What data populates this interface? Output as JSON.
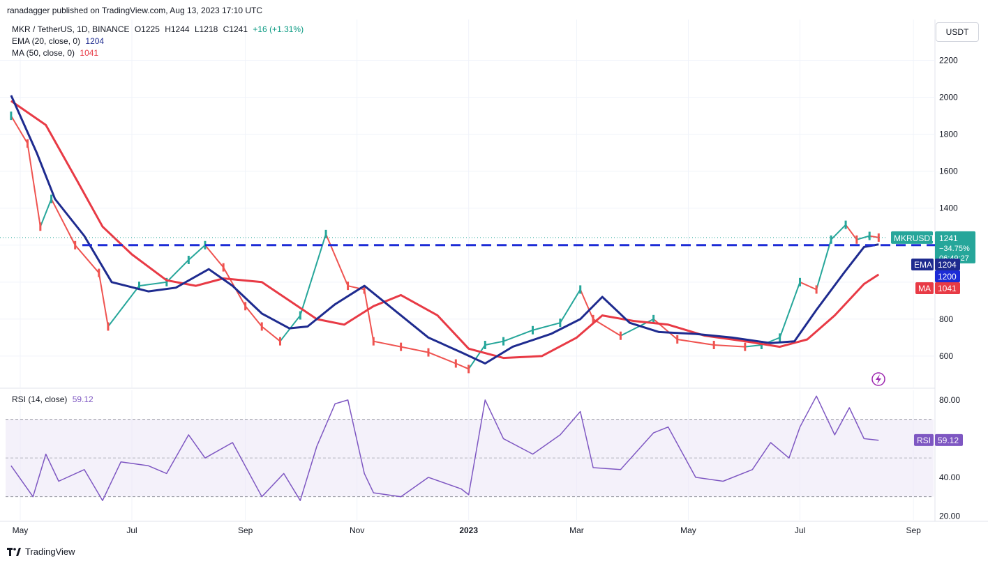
{
  "publisher": "ranadagger published on TradingView.com, Aug 13, 2023 17:10 UTC",
  "header": {
    "symbol": "MKR / TetherUS, 1D, BINANCE",
    "open": "O1225",
    "high": "H1244",
    "low": "L1218",
    "close": "C1241",
    "change": "+16 (+1.31%)",
    "ema_label": "EMA (20, close, 0)",
    "ema_value": "1204",
    "ma_label": "MA (50, close, 0)",
    "ma_value": "1041",
    "rsi_label": "RSI (14, close)",
    "rsi_value": "59.12"
  },
  "currency_button": "USDT",
  "branding": "TradingView",
  "colors": {
    "up": "#26a69a",
    "down": "#ef5350",
    "ema": "#1e2b8f",
    "ma": "#e83a45",
    "dashed_line": "#1c2bd6",
    "rsi": "#7e57c2",
    "rsi_band": "#ede7f6",
    "price_tag": "#26a69a",
    "bolt": "#9c27b0"
  },
  "badges": {
    "symbol": "MKRUSDT",
    "price": "1241",
    "pct": "−34.75%",
    "countdown": "06:49:27",
    "ema": "EMA",
    "ema_val": "1204",
    "level": "1200",
    "ma": "MA",
    "ma_val": "1041",
    "rsi": "RSI",
    "rsi_val": "59.12"
  },
  "chart_data": [
    {
      "type": "line",
      "title": "MKR / TetherUS, 1D, BINANCE",
      "x_ticks": [
        "May",
        "Jul",
        "Sep",
        "Nov",
        "2023",
        "Mar",
        "May",
        "Jul",
        "Sep"
      ],
      "y_ticks": [
        600,
        800,
        1000,
        1200,
        1400,
        1600,
        1800,
        2000,
        2200
      ],
      "ylim": [
        430,
        2300
      ],
      "horizontal_level": 1200,
      "price_points": {
        "x": [
          "2022-04-26",
          "2022-05-05",
          "2022-05-12",
          "2022-05-18",
          "2022-05-31",
          "2022-06-13",
          "2022-06-18",
          "2022-07-05",
          "2022-07-20",
          "2022-08-01",
          "2022-08-10",
          "2022-08-20",
          "2022-09-01",
          "2022-09-10",
          "2022-09-20",
          "2022-10-01",
          "2022-10-15",
          "2022-10-27",
          "2022-11-05",
          "2022-11-10",
          "2022-11-25",
          "2022-12-10",
          "2022-12-25",
          "2023-01-01",
          "2023-01-10",
          "2023-01-20",
          "2023-02-05",
          "2023-02-20",
          "2023-03-03",
          "2023-03-10",
          "2023-03-25",
          "2023-04-12",
          "2023-04-25",
          "2023-05-15",
          "2023-06-01",
          "2023-06-10",
          "2023-06-20",
          "2023-07-01",
          "2023-07-10",
          "2023-07-18",
          "2023-07-26",
          "2023-08-01",
          "2023-08-08",
          "2023-08-13"
        ],
        "y": [
          1900,
          1750,
          1300,
          1450,
          1200,
          1050,
          760,
          980,
          1000,
          1120,
          1200,
          1080,
          870,
          760,
          680,
          820,
          1260,
          980,
          960,
          680,
          650,
          620,
          560,
          530,
          660,
          680,
          740,
          780,
          960,
          800,
          710,
          800,
          690,
          660,
          650,
          660,
          700,
          1000,
          960,
          1230,
          1310,
          1230,
          1250,
          1241
        ]
      },
      "ema20": {
        "x": [
          "2022-04-26",
          "2022-05-10",
          "2022-05-20",
          "2022-06-05",
          "2022-06-20",
          "2022-07-10",
          "2022-07-25",
          "2022-08-12",
          "2022-08-25",
          "2022-09-10",
          "2022-09-25",
          "2022-10-05",
          "2022-10-20",
          "2022-11-05",
          "2022-11-20",
          "2022-12-10",
          "2022-12-28",
          "2023-01-10",
          "2023-01-25",
          "2023-02-15",
          "2023-03-03",
          "2023-03-15",
          "2023-03-30",
          "2023-04-15",
          "2023-05-05",
          "2023-05-25",
          "2023-06-15",
          "2023-06-28",
          "2023-07-10",
          "2023-07-25",
          "2023-08-05",
          "2023-08-13"
        ],
        "y": [
          2010,
          1700,
          1450,
          1250,
          1000,
          950,
          970,
          1070,
          980,
          830,
          750,
          760,
          880,
          980,
          860,
          700,
          620,
          560,
          650,
          720,
          800,
          920,
          780,
          730,
          720,
          700,
          670,
          680,
          850,
          1050,
          1190,
          1204
        ]
      },
      "ma50": {
        "x": [
          "2022-04-26",
          "2022-05-15",
          "2022-06-01",
          "2022-06-15",
          "2022-07-01",
          "2022-07-20",
          "2022-08-05",
          "2022-08-20",
          "2022-09-10",
          "2022-09-25",
          "2022-10-10",
          "2022-10-25",
          "2022-11-10",
          "2022-11-25",
          "2022-12-15",
          "2023-01-01",
          "2023-01-20",
          "2023-02-10",
          "2023-03-01",
          "2023-03-15",
          "2023-04-01",
          "2023-04-20",
          "2023-05-10",
          "2023-06-01",
          "2023-06-20",
          "2023-07-05",
          "2023-07-20",
          "2023-08-05",
          "2023-08-13"
        ],
        "y": [
          1980,
          1850,
          1550,
          1300,
          1150,
          1010,
          980,
          1020,
          1000,
          900,
          800,
          770,
          870,
          930,
          820,
          640,
          590,
          600,
          700,
          820,
          790,
          770,
          710,
          680,
          650,
          690,
          820,
          990,
          1041
        ]
      }
    },
    {
      "type": "line",
      "title": "RSI (14, close)",
      "y_ticks": [
        20.0,
        40.0,
        80.0
      ],
      "ylim": [
        18,
        85
      ],
      "band": [
        30,
        70
      ],
      "midline": 50,
      "rsi": {
        "x": [
          "2022-04-26",
          "2022-05-08",
          "2022-05-15",
          "2022-05-22",
          "2022-06-05",
          "2022-06-15",
          "2022-06-25",
          "2022-07-10",
          "2022-07-20",
          "2022-08-01",
          "2022-08-10",
          "2022-08-25",
          "2022-09-10",
          "2022-09-22",
          "2022-10-01",
          "2022-10-10",
          "2022-10-20",
          "2022-10-27",
          "2022-11-05",
          "2022-11-10",
          "2022-11-25",
          "2022-12-10",
          "2022-12-28",
          "2023-01-01",
          "2023-01-10",
          "2023-01-20",
          "2023-02-05",
          "2023-02-20",
          "2023-03-03",
          "2023-03-10",
          "2023-03-25",
          "2023-04-12",
          "2023-04-20",
          "2023-05-05",
          "2023-05-20",
          "2023-06-05",
          "2023-06-15",
          "2023-06-25",
          "2023-07-01",
          "2023-07-10",
          "2023-07-20",
          "2023-07-28",
          "2023-08-05",
          "2023-08-13"
        ],
        "y": [
          46,
          30,
          52,
          38,
          44,
          28,
          48,
          46,
          42,
          62,
          50,
          58,
          30,
          42,
          28,
          56,
          78,
          80,
          42,
          32,
          30,
          40,
          34,
          31,
          80,
          60,
          52,
          62,
          74,
          45,
          44,
          63,
          66,
          40,
          38,
          44,
          58,
          50,
          66,
          82,
          62,
          76,
          60,
          59.12
        ]
      }
    }
  ]
}
